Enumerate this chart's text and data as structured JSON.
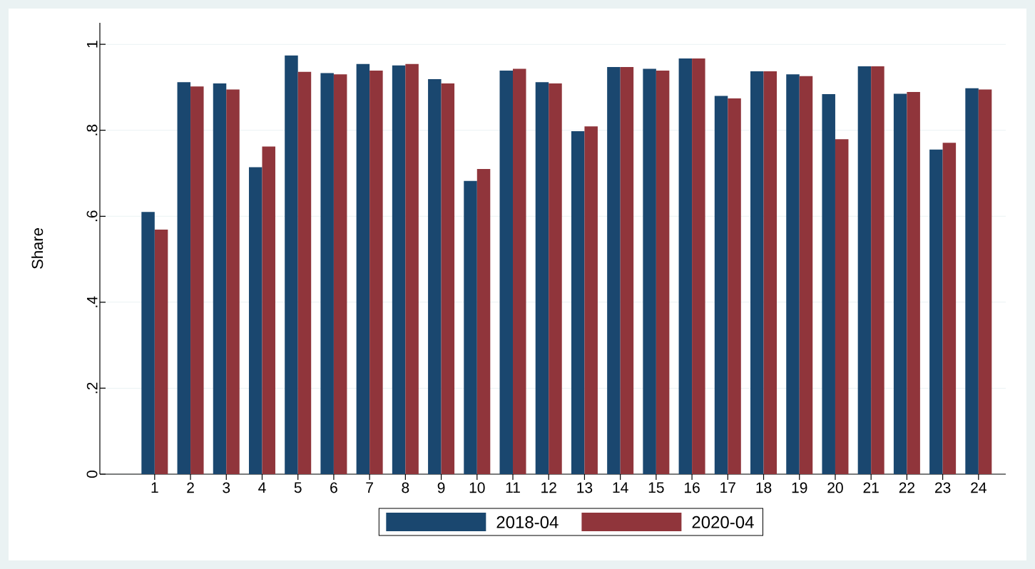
{
  "chart_data": {
    "type": "bar",
    "ylabel": "Share",
    "categories": [
      "1",
      "2",
      "3",
      "4",
      "5",
      "6",
      "7",
      "8",
      "9",
      "10",
      "11",
      "12",
      "13",
      "14",
      "15",
      "16",
      "17",
      "18",
      "19",
      "20",
      "21",
      "22",
      "23",
      "24"
    ],
    "series": [
      {
        "name": "2018-04",
        "color": "#1a476f",
        "values": [
          0.61,
          0.912,
          0.909,
          0.714,
          0.974,
          0.933,
          0.954,
          0.951,
          0.919,
          0.682,
          0.939,
          0.912,
          0.798,
          0.947,
          0.943,
          0.967,
          0.88,
          0.937,
          0.93,
          0.884,
          0.949,
          0.885,
          0.755,
          0.898
        ]
      },
      {
        "name": "2020-04",
        "color": "#90353b",
        "values": [
          0.569,
          0.902,
          0.895,
          0.762,
          0.936,
          0.93,
          0.939,
          0.954,
          0.909,
          0.71,
          0.943,
          0.909,
          0.809,
          0.947,
          0.939,
          0.967,
          0.874,
          0.937,
          0.926,
          0.779,
          0.949,
          0.889,
          0.771,
          0.895
        ]
      }
    ],
    "ylim": [
      0,
      1.05
    ],
    "yticks": [
      0,
      {
        "value": 0.2,
        "label": ".2"
      },
      {
        "value": 0.4,
        "label": ".4"
      },
      {
        "value": 0.6,
        "label": ".6"
      },
      {
        "value": 0.8,
        "label": ".8"
      },
      {
        "value": 1,
        "label": "1"
      }
    ],
    "grid": "y",
    "legend": "bottom"
  }
}
